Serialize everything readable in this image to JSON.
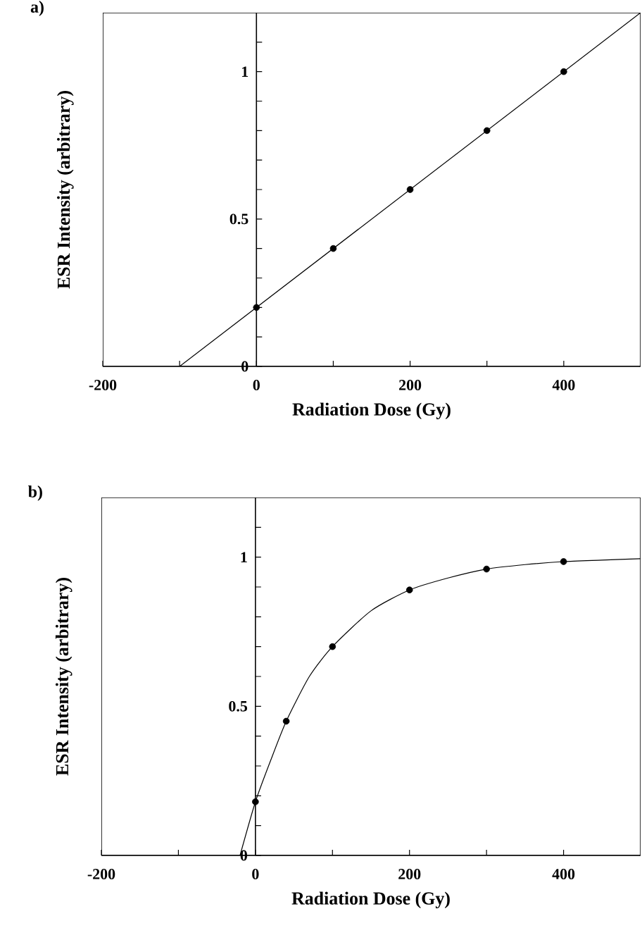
{
  "chart_data": [
    {
      "type": "scatter",
      "title": "a)",
      "xlabel": "Radiation Dose (Gy)",
      "ylabel": "ESR Intensity (arbitrary)",
      "xlim": [
        -200,
        500
      ],
      "ylim": [
        0,
        1.2
      ],
      "xticks": [
        -200,
        {
          "value": -100,
          "label": null
        },
        0,
        {
          "value": 100,
          "label": null
        },
        200,
        {
          "value": 300,
          "label": null
        },
        400
      ],
      "yticks": [
        0,
        {
          "value": 0.1,
          "label": null
        },
        {
          "value": 0.2,
          "label": null
        },
        {
          "value": 0.3,
          "label": null
        },
        {
          "value": 0.4,
          "label": null
        },
        0.5,
        {
          "value": 0.6,
          "label": null
        },
        {
          "value": 0.7,
          "label": null
        },
        {
          "value": 0.8,
          "label": null
        },
        {
          "value": 0.9,
          "label": null
        },
        1,
        {
          "value": 1.1,
          "label": null
        }
      ],
      "series": [
        {
          "type": "scatter",
          "color": "#000000",
          "marker": "circle",
          "x": [
            0,
            100,
            200,
            300,
            400
          ],
          "values": [
            0.2,
            0.4,
            0.6,
            0.8,
            1.0
          ]
        },
        {
          "type": "line",
          "color": "#000000",
          "marker": "none",
          "line_style": "solid",
          "x": [
            -100,
            500
          ],
          "values": [
            0,
            1.2
          ]
        }
      ]
    },
    {
      "type": "scatter",
      "title": "b)",
      "xlabel": "Radiation Dose (Gy)",
      "ylabel": "ESR Intensity (arbitrary)",
      "xlim": [
        -200,
        500
      ],
      "ylim": [
        0,
        1.2
      ],
      "xticks": [
        -200,
        {
          "value": -100,
          "label": null
        },
        0,
        {
          "value": 100,
          "label": null
        },
        200,
        {
          "value": 300,
          "label": null
        },
        400
      ],
      "yticks": [
        0,
        {
          "value": 0.1,
          "label": null
        },
        {
          "value": 0.2,
          "label": null
        },
        {
          "value": 0.3,
          "label": null
        },
        {
          "value": 0.4,
          "label": null
        },
        0.5,
        {
          "value": 0.6,
          "label": null
        },
        {
          "value": 0.7,
          "label": null
        },
        {
          "value": 0.8,
          "label": null
        },
        {
          "value": 0.9,
          "label": null
        },
        1,
        {
          "value": 1.1,
          "label": null
        }
      ],
      "series": [
        {
          "type": "scatter",
          "color": "#000000",
          "marker": "circle",
          "x": [
            0,
            40,
            100,
            200,
            300,
            400
          ],
          "values": [
            0.18,
            0.45,
            0.7,
            0.89,
            0.96,
            0.985
          ]
        },
        {
          "type": "line",
          "color": "#000000",
          "marker": "none",
          "line_style": "solid",
          "x": [
            -20,
            0,
            20,
            40,
            70,
            100,
            150,
            200,
            250,
            300,
            350,
            400,
            450,
            500
          ],
          "values": [
            0,
            0.18,
            0.32,
            0.45,
            0.6,
            0.7,
            0.82,
            0.89,
            0.93,
            0.96,
            0.975,
            0.985,
            0.99,
            0.995
          ]
        }
      ]
    }
  ]
}
